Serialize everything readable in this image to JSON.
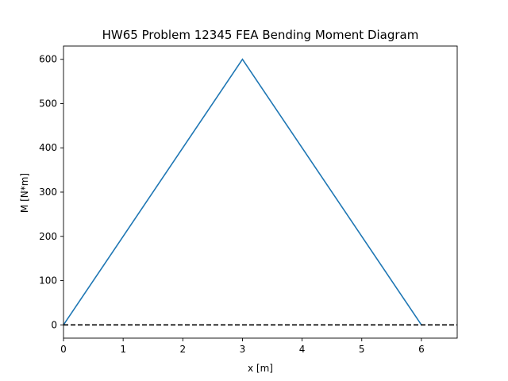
{
  "chart_data": {
    "type": "line",
    "title": "HW65 Problem 12345 FEA Bending Moment Diagram",
    "xlabel": "x [m]",
    "ylabel": "M [N*m]",
    "xlim": [
      0,
      6.6
    ],
    "ylim": [
      -30,
      630
    ],
    "xticks": [
      0,
      1,
      2,
      3,
      4,
      5,
      6
    ],
    "yticks": [
      0,
      100,
      200,
      300,
      400,
      500,
      600
    ],
    "grid": false,
    "series": [
      {
        "x": [
          0,
          3,
          6
        ],
        "y": [
          0,
          600,
          0
        ],
        "color": "#1f77b4"
      }
    ],
    "reference_line": {
      "y": 0,
      "style": "dashed",
      "color": "#000000"
    }
  }
}
